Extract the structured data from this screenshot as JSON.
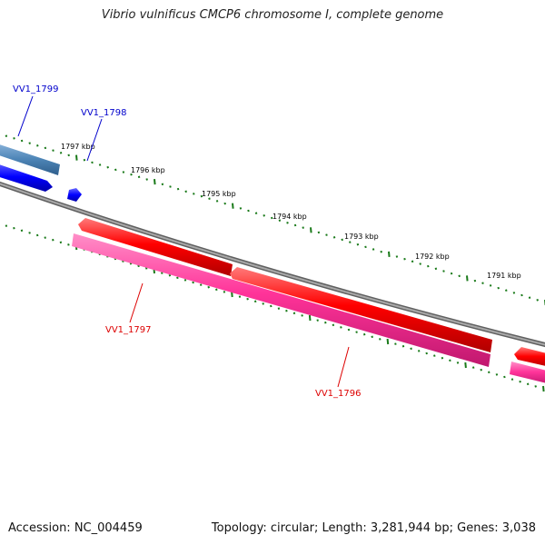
{
  "title": "Vibrio vulnificus CMCP6 chromosome I, complete genome",
  "footer": {
    "accession": "Accession: NC_004459",
    "topology": "Topology: circular; Length: 3,281,944 bp; Genes: 3,038"
  },
  "scale": {
    "unit": "kbp",
    "labels": [
      "1797 kbp",
      "1796 kbp",
      "1795 kbp",
      "1794 kbp",
      "1793 kbp",
      "1792 kbp",
      "1791 kbp"
    ]
  },
  "genes": [
    {
      "name": "VV1_1799",
      "color": "#0000cc"
    },
    {
      "name": "VV1_1798",
      "color": "#0000cc"
    },
    {
      "name": "VV1_1797",
      "color": "#dd0000"
    },
    {
      "name": "VV1_1796",
      "color": "#dd0000"
    }
  ],
  "colors": {
    "backbone": "#808080",
    "ticks": "#1a7a1a",
    "feature_red": "#ff0000",
    "feature_pink": "#ff3399",
    "feature_blue": "#0000ff",
    "feature_steel": "#4f86b8"
  }
}
